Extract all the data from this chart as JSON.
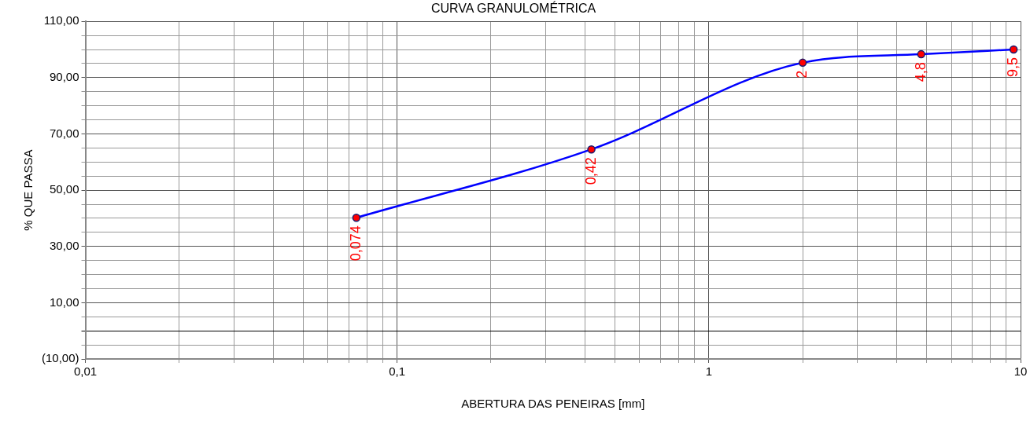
{
  "chart_data": {
    "type": "line",
    "title": "CURVA GRANULOMÉTRICA",
    "xlabel": "ABERTURA DAS PENEIRAS [mm]",
    "ylabel": "% QUE PASSA",
    "x": [
      0.074,
      0.42,
      2,
      4.8,
      9.5
    ],
    "series": [
      {
        "color": "#0000ff",
        "colors": [
          "#ff0000",
          "#ff0000",
          "#ff0000",
          "#ff0000",
          "#ff0000"
        ],
        "values": [
          40.2,
          64.5,
          95.3,
          98.3,
          100
        ]
      }
    ],
    "annotations": [
      {
        "text": "0,074",
        "x": 0.074,
        "y": 40.2
      },
      {
        "text": "0,42",
        "x": 0.42,
        "y": 64.5
      },
      {
        "text": "2",
        "x": 2,
        "y": 95.3
      },
      {
        "text": "4,8",
        "x": 4.8,
        "y": 98.3
      },
      {
        "text": "9,5",
        "x": 9.5,
        "y": 100
      }
    ],
    "log": "x",
    "xlim": [
      0.01,
      10
    ],
    "xticks": [
      {
        "value": 0.01,
        "label": "0,01"
      },
      {
        "value": 0.02,
        "label": null
      },
      {
        "value": 0.03,
        "label": null
      },
      {
        "value": 0.04,
        "label": null
      },
      {
        "value": 0.05,
        "label": null
      },
      {
        "value": 0.06,
        "label": null
      },
      {
        "value": 0.07,
        "label": null
      },
      {
        "value": 0.08,
        "label": null
      },
      {
        "value": 0.09,
        "label": null
      },
      {
        "value": 0.1,
        "label": "0,1"
      },
      {
        "value": 0.2,
        "label": null
      },
      {
        "value": 0.3,
        "label": null
      },
      {
        "value": 0.4,
        "label": null
      },
      {
        "value": 0.5,
        "label": null
      },
      {
        "value": 0.6,
        "label": null
      },
      {
        "value": 0.7,
        "label": null
      },
      {
        "value": 0.8,
        "label": null
      },
      {
        "value": 0.9,
        "label": null
      },
      {
        "value": 1,
        "label": "1"
      },
      {
        "value": 2,
        "label": null
      },
      {
        "value": 3,
        "label": null
      },
      {
        "value": 4,
        "label": null
      },
      {
        "value": 5,
        "label": null
      },
      {
        "value": 6,
        "label": null
      },
      {
        "value": 7,
        "label": null
      },
      {
        "value": 8,
        "label": null
      },
      {
        "value": 9,
        "label": null
      },
      {
        "value": 10,
        "label": "10"
      }
    ],
    "ylim": [
      -10,
      110
    ],
    "yticks": [
      {
        "value": -10,
        "label": "(10,00)"
      },
      {
        "value": -5,
        "label": null
      },
      {
        "value": 0,
        "label": null
      },
      {
        "value": 5,
        "label": null
      },
      {
        "value": 10,
        "label": "10,00"
      },
      {
        "value": 15,
        "label": null
      },
      {
        "value": 20,
        "label": null
      },
      {
        "value": 25,
        "label": null
      },
      {
        "value": 30,
        "label": "30,00"
      },
      {
        "value": 35,
        "label": null
      },
      {
        "value": 40,
        "label": null
      },
      {
        "value": 45,
        "label": null
      },
      {
        "value": 50,
        "label": "50,00"
      },
      {
        "value": 55,
        "label": null
      },
      {
        "value": 60,
        "label": null
      },
      {
        "value": 65,
        "label": null
      },
      {
        "value": 70,
        "label": "70,00"
      },
      {
        "value": 75,
        "label": null
      },
      {
        "value": 80,
        "label": null
      },
      {
        "value": 85,
        "label": null
      },
      {
        "value": 90,
        "label": "90,00"
      },
      {
        "value": 95,
        "label": null
      },
      {
        "value": 100,
        "label": null
      },
      {
        "value": 105,
        "label": null
      },
      {
        "value": 110,
        "label": "110,00"
      }
    ],
    "grid": true,
    "marker": "circle",
    "line_style": "solid",
    "legend": false
  }
}
